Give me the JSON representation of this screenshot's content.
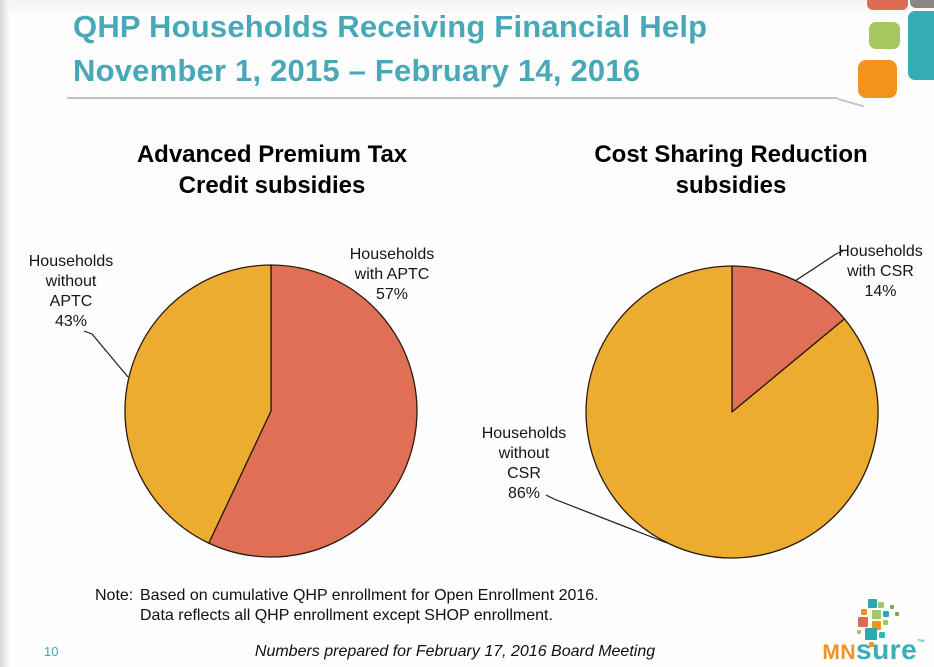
{
  "slide": {
    "title_line1": "QHP Households Receiving Financial Help",
    "title_line2": "November 1, 2015 – February 14, 2016",
    "page_number": "10",
    "footer": "Numbers prepared for February 17, 2016 Board Meeting",
    "note_label": "Note:",
    "note_line1": "Based on cumulative QHP enrollment for Open Enrollment 2016.",
    "note_line2": "Data reflects all QHP enrollment except SHOP enrollment."
  },
  "logo": {
    "mn": "MN",
    "sure": "sure",
    "tm": "™"
  },
  "colors": {
    "title_teal": "#47a9b8",
    "pie_salmon": "#e07055",
    "pie_gold": "#ecac2f",
    "pie_outline": "#2a1a0c",
    "deco_red": "#dc6a55",
    "deco_gray": "#8b8681",
    "deco_teal": "#35adb5",
    "deco_green": "#a5c75f",
    "deco_orange": "#f5921e",
    "page_number_teal": "#4aa0ae"
  },
  "chart_data": [
    {
      "type": "pie",
      "title": "Advanced Premium Tax Credit subsidies",
      "categories": [
        "Households with APTC",
        "Households without APTC"
      ],
      "values": [
        57,
        43
      ],
      "unit": "%",
      "colors": [
        "#e07055",
        "#ecac2f"
      ],
      "start_angle_deg": 0,
      "direction": "clockwise",
      "legend_position": "callout-labels",
      "callouts": [
        {
          "display": "Households\nwith APTC\n57%"
        },
        {
          "display": "Households\nwithout\nAPTC\n43%"
        }
      ]
    },
    {
      "type": "pie",
      "title": "Cost Sharing Reduction subsidies",
      "categories": [
        "Households with CSR",
        "Households without CSR"
      ],
      "values": [
        14,
        86
      ],
      "unit": "%",
      "colors": [
        "#e07055",
        "#ecac2f"
      ],
      "start_angle_deg": 0,
      "direction": "clockwise",
      "legend_position": "callout-labels",
      "callouts": [
        {
          "display": "Households\nwith CSR\n14%"
        },
        {
          "display": "Households\nwithout\nCSR\n86%"
        }
      ]
    }
  ]
}
